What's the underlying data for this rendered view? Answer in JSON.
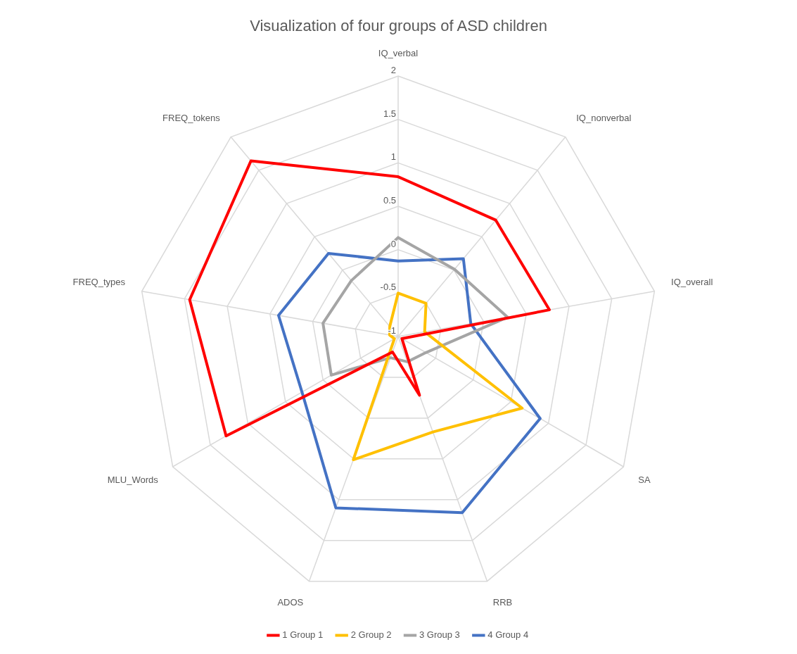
{
  "chart_data": {
    "type": "radar",
    "title": "Visualization of four groups of ASD children",
    "categories": [
      "IQ_verbal",
      "IQ_nonverbal",
      "IQ_overall",
      "SA",
      "RRB",
      "ADOS",
      "MLU_Words",
      "FREQ_types",
      "FREQ_tokens"
    ],
    "ylim": [
      -1,
      2
    ],
    "yticks": [
      -1,
      -0.5,
      0,
      0.5,
      1,
      1.5,
      2
    ],
    "legend": "bottom",
    "marker": "none",
    "grid": true,
    "series": [
      {
        "name": "1 Group 1",
        "color": "#ff0000",
        "values": [
          0.84,
          0.75,
          0.77,
          -0.95,
          -0.28,
          -0.81,
          1.29,
          1.44,
          1.64
        ]
      },
      {
        "name": "2 Group 2",
        "color": "#ffc000",
        "values": [
          -0.5,
          -0.5,
          -0.69,
          0.65,
          0.17,
          0.51,
          -0.95,
          -0.9,
          -0.85
        ]
      },
      {
        "name": "3 Group 3",
        "color": "#a5a5a5",
        "values": [
          0.14,
          0.01,
          0.28,
          -0.63,
          -0.69,
          -0.74,
          -0.11,
          -0.12,
          -0.16
        ]
      },
      {
        "name": "4 Group 4",
        "color": "#4472c4",
        "values": [
          -0.13,
          0.17,
          -0.15,
          0.89,
          1.16,
          1.1,
          0.28,
          0.4,
          0.25
        ]
      }
    ]
  }
}
